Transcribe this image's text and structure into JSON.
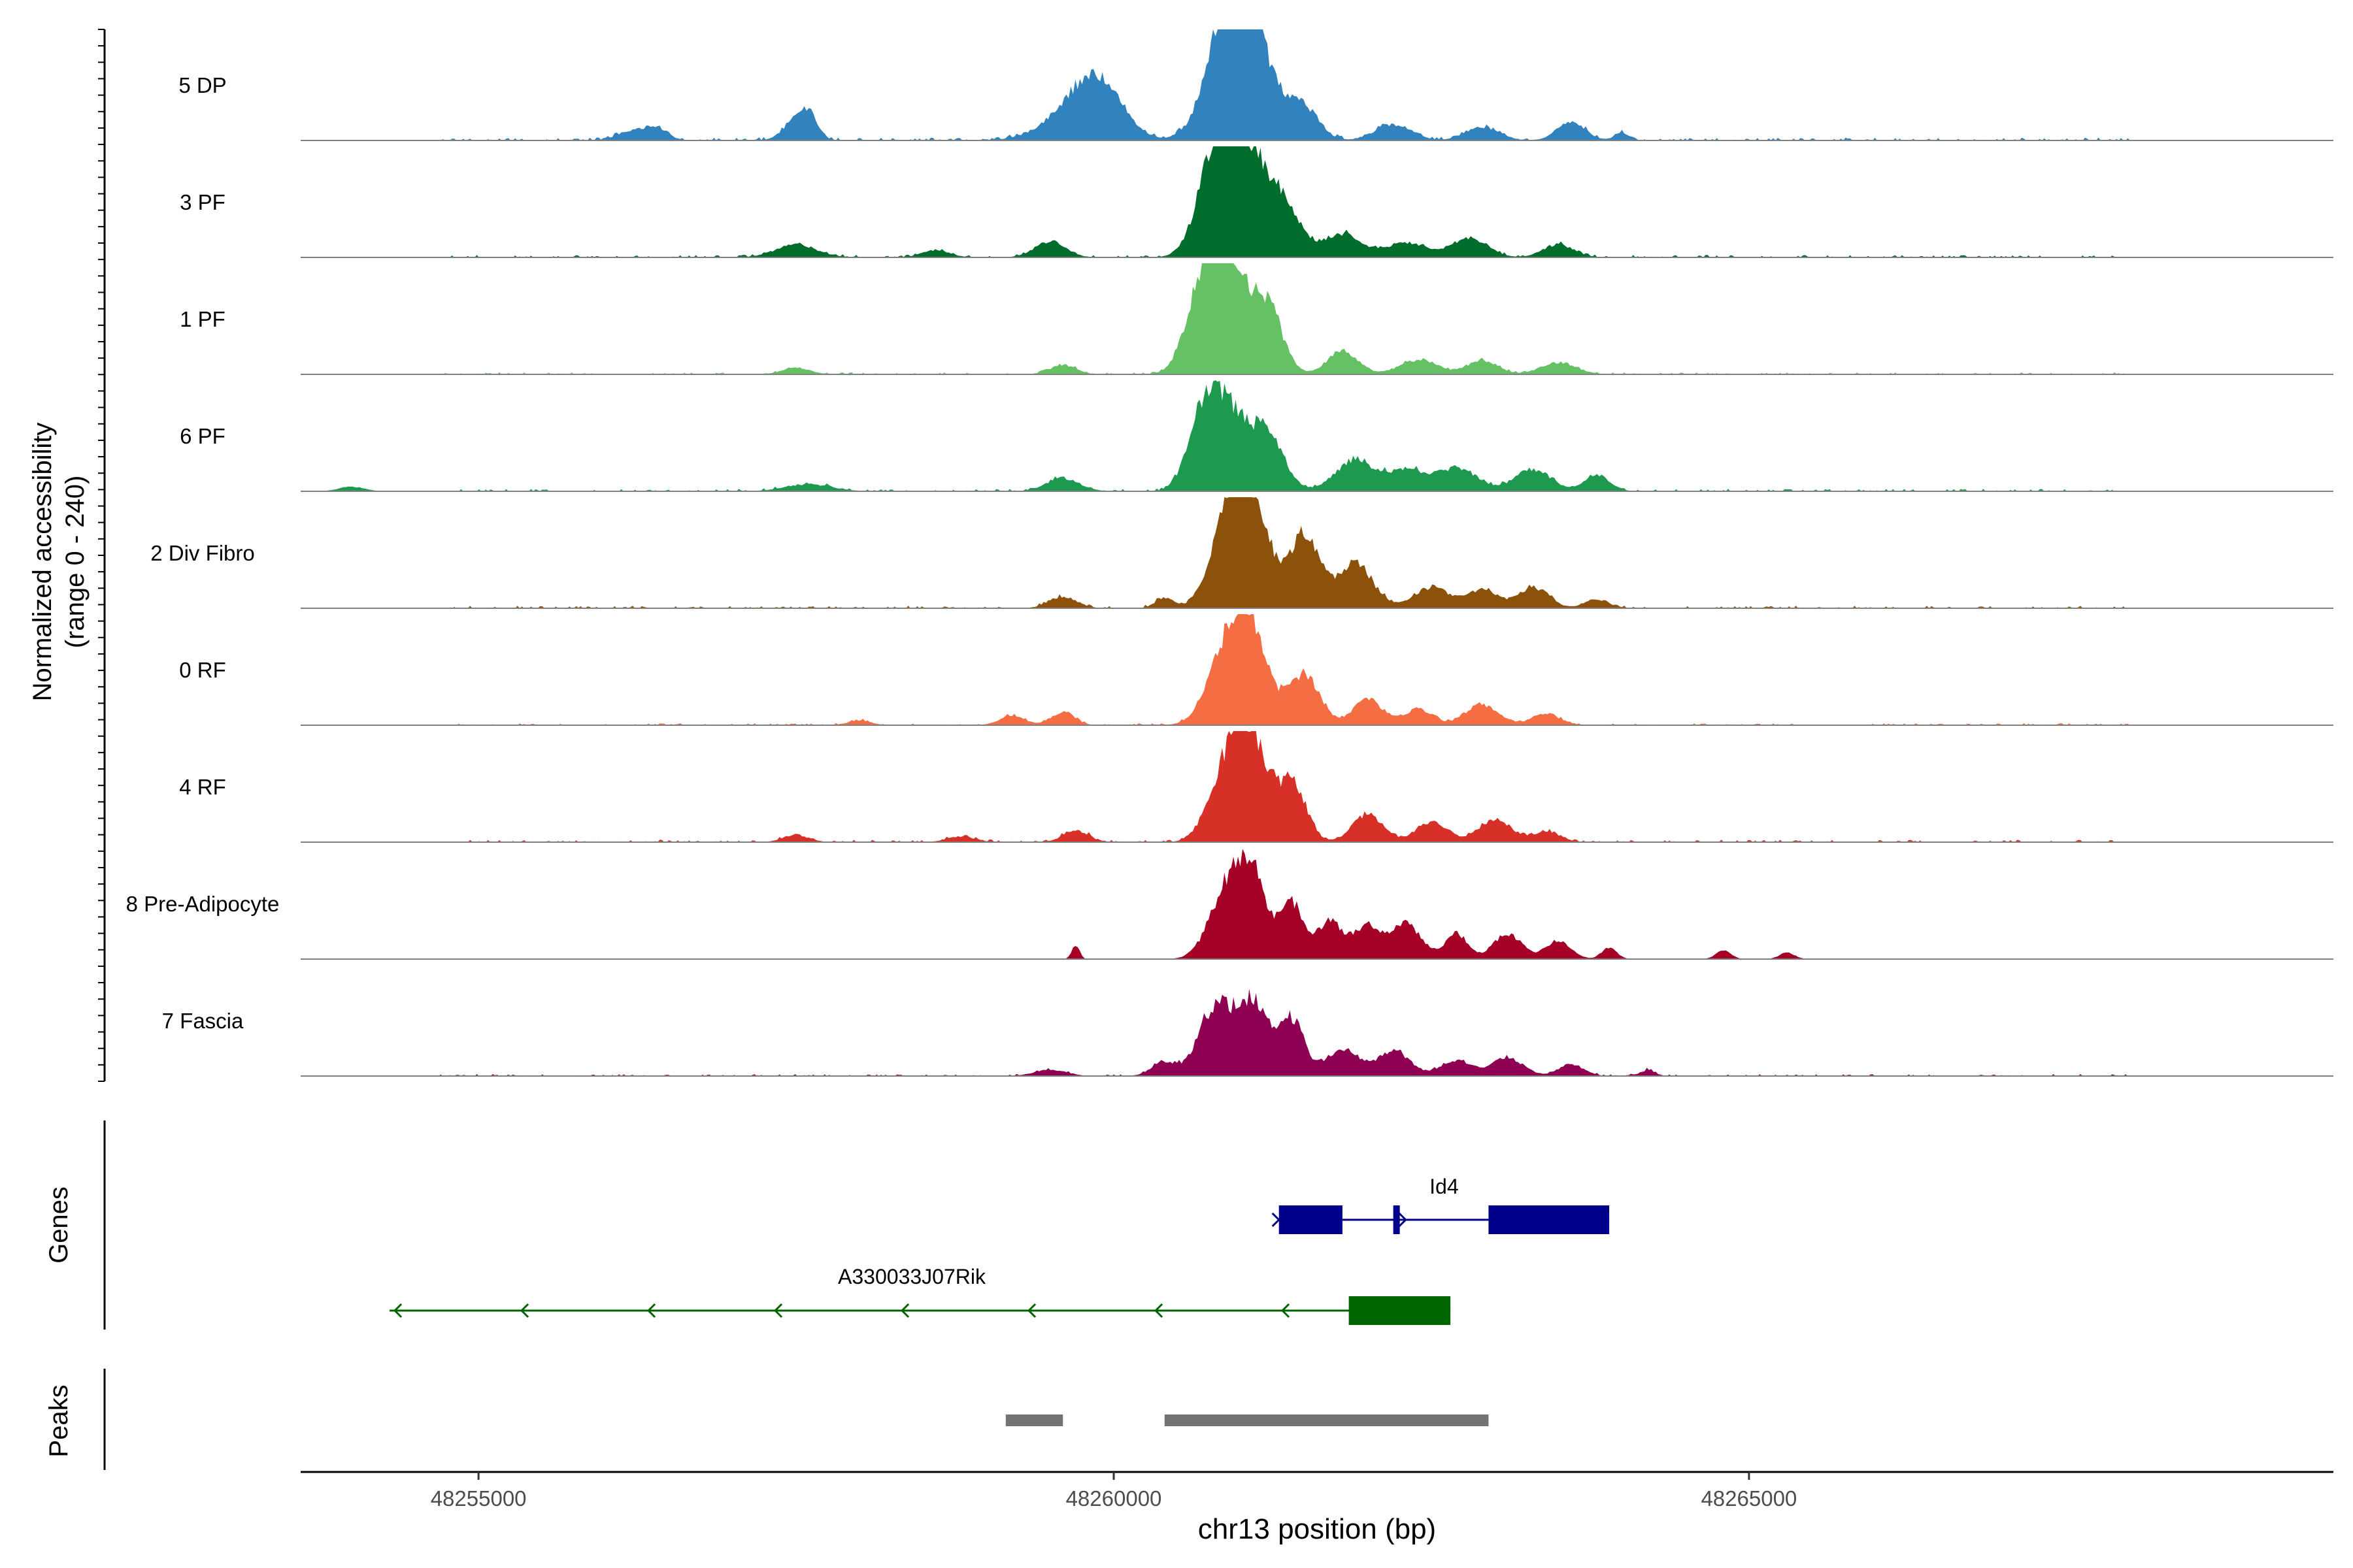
{
  "chart_data": {
    "type": "area",
    "title": "",
    "ylabel": [
      "Normalized accessibility",
      "(range 0 - 240)"
    ],
    "xlabel": "chr13 position (bp)",
    "xlim": [
      48253600,
      48269600
    ],
    "ylim": [
      0,
      240
    ],
    "x_ticks": [
      {
        "value": 48255000,
        "label": "48255000"
      },
      {
        "value": 48260000,
        "label": "48260000"
      },
      {
        "value": 48265000,
        "label": "48265000"
      }
    ],
    "series": [
      {
        "name": "5 DP",
        "color": "#3182BD",
        "noise": 6,
        "peaks": [
          [
            48256200,
            110,
            20
          ],
          [
            48256400,
            90,
            25
          ],
          [
            48257500,
            100,
            40
          ],
          [
            48257600,
            70,
            45
          ],
          [
            48259700,
            230,
            70
          ],
          [
            48259900,
            180,
            90
          ],
          [
            48260900,
            170,
            240
          ],
          [
            48261000,
            120,
            160
          ],
          [
            48261200,
            150,
            110
          ],
          [
            48261500,
            120,
            65
          ],
          [
            48262200,
            140,
            35
          ],
          [
            48262900,
            130,
            30
          ],
          [
            48263600,
            110,
            42
          ],
          [
            48264000,
            60,
            16
          ]
        ]
      },
      {
        "name": "3 PF",
        "color": "#006D2C",
        "noise": 5,
        "peaks": [
          [
            48257500,
            160,
            28
          ],
          [
            48258600,
            110,
            15
          ],
          [
            48259500,
            120,
            35
          ],
          [
            48260800,
            140,
            200
          ],
          [
            48261000,
            140,
            220
          ],
          [
            48261300,
            150,
            130
          ],
          [
            48261800,
            150,
            50
          ],
          [
            48262300,
            160,
            32
          ],
          [
            48262800,
            140,
            42
          ],
          [
            48263500,
            120,
            28
          ]
        ]
      },
      {
        "name": "1 PF",
        "color": "#66C164",
        "noise": 4,
        "peaks": [
          [
            48257500,
            110,
            14
          ],
          [
            48259600,
            100,
            20
          ],
          [
            48260700,
            130,
            170
          ],
          [
            48260900,
            140,
            210
          ],
          [
            48261200,
            120,
            150
          ],
          [
            48261800,
            120,
            50
          ],
          [
            48262400,
            150,
            30
          ],
          [
            48262900,
            120,
            30
          ],
          [
            48263500,
            140,
            25
          ]
        ]
      },
      {
        "name": "6 PF",
        "color": "#1D9A50",
        "noise": 5,
        "peaks": [
          [
            48254000,
            100,
            10
          ],
          [
            48257600,
            180,
            15
          ],
          [
            48259600,
            130,
            28
          ],
          [
            48260700,
            120,
            150
          ],
          [
            48260900,
            130,
            160
          ],
          [
            48261200,
            130,
            130
          ],
          [
            48261900,
            150,
            70
          ],
          [
            48262300,
            140,
            45
          ],
          [
            48262700,
            160,
            50
          ],
          [
            48263300,
            140,
            48
          ],
          [
            48263800,
            100,
            35
          ]
        ]
      },
      {
        "name": "2 Div Fibro",
        "color": "#8C510A",
        "noise": 5,
        "peaks": [
          [
            48259600,
            110,
            25
          ],
          [
            48260400,
            70,
            22
          ],
          [
            48260900,
            140,
            180
          ],
          [
            48261100,
            130,
            200
          ],
          [
            48261500,
            120,
            160
          ],
          [
            48261900,
            140,
            95
          ],
          [
            48262500,
            140,
            45
          ],
          [
            48262900,
            120,
            40
          ],
          [
            48263300,
            120,
            45
          ],
          [
            48263800,
            100,
            18
          ]
        ]
      },
      {
        "name": "0 RF",
        "color": "#F46D43",
        "noise": 4,
        "peaks": [
          [
            48258000,
            90,
            10
          ],
          [
            48259200,
            100,
            20
          ],
          [
            48259600,
            90,
            28
          ],
          [
            48260900,
            150,
            170
          ],
          [
            48261100,
            130,
            160
          ],
          [
            48261500,
            120,
            110
          ],
          [
            48262000,
            120,
            55
          ],
          [
            48262400,
            110,
            35
          ],
          [
            48262900,
            130,
            45
          ],
          [
            48263400,
            110,
            25
          ]
        ]
      },
      {
        "name": "4 RF",
        "color": "#D73027",
        "noise": 5,
        "peaks": [
          [
            48257500,
            100,
            15
          ],
          [
            48258800,
            110,
            12
          ],
          [
            48259700,
            100,
            25
          ],
          [
            48260900,
            140,
            170
          ],
          [
            48261100,
            120,
            180
          ],
          [
            48261400,
            110,
            130
          ],
          [
            48262000,
            120,
            60
          ],
          [
            48262500,
            120,
            42
          ],
          [
            48263000,
            130,
            48
          ],
          [
            48263400,
            110,
            22
          ]
        ]
      },
      {
        "name": "8 Pre-Adipocyte",
        "color": "#A50026",
        "noise": 0,
        "peaks": [
          [
            48259700,
            30,
            30
          ],
          [
            48260900,
            140,
            155
          ],
          [
            48261100,
            110,
            150
          ],
          [
            48261400,
            90,
            120
          ],
          [
            48261700,
            110,
            80
          ],
          [
            48262000,
            100,
            70
          ],
          [
            48262300,
            120,
            78
          ],
          [
            48262700,
            90,
            55
          ],
          [
            48263100,
            110,
            55
          ],
          [
            48263500,
            100,
            40
          ],
          [
            48263900,
            60,
            25
          ],
          [
            48264800,
            60,
            18
          ],
          [
            48265300,
            60,
            14
          ]
        ]
      },
      {
        "name": "7 Fascia",
        "color": "#8E0152",
        "noise": 4,
        "peaks": [
          [
            48259500,
            120,
            14
          ],
          [
            48260400,
            100,
            30
          ],
          [
            48260800,
            130,
            150
          ],
          [
            48261100,
            120,
            160
          ],
          [
            48261400,
            100,
            120
          ],
          [
            48261800,
            120,
            60
          ],
          [
            48262200,
            130,
            55
          ],
          [
            48262700,
            120,
            35
          ],
          [
            48263100,
            120,
            40
          ],
          [
            48263600,
            100,
            25
          ],
          [
            48264200,
            60,
            12
          ]
        ]
      }
    ],
    "genes": [
      {
        "name": "Id4",
        "strand": "+",
        "color": "#00008B",
        "start": 48261300,
        "end": 48263900,
        "exons": [
          [
            48261300,
            48261800
          ],
          [
            48262200,
            48262250
          ],
          [
            48262950,
            48263900
          ]
        ]
      },
      {
        "name": "A330033J07Rik",
        "strand": "-",
        "color": "#006400",
        "start": 48254300,
        "end": 48262650,
        "exons": [
          [
            48261850,
            48262650
          ]
        ]
      }
    ],
    "gene_track_label": "Genes",
    "peaks": [
      [
        48259150,
        48259600
      ],
      [
        48260400,
        48262950
      ]
    ],
    "peak_track_label": "Peaks"
  }
}
